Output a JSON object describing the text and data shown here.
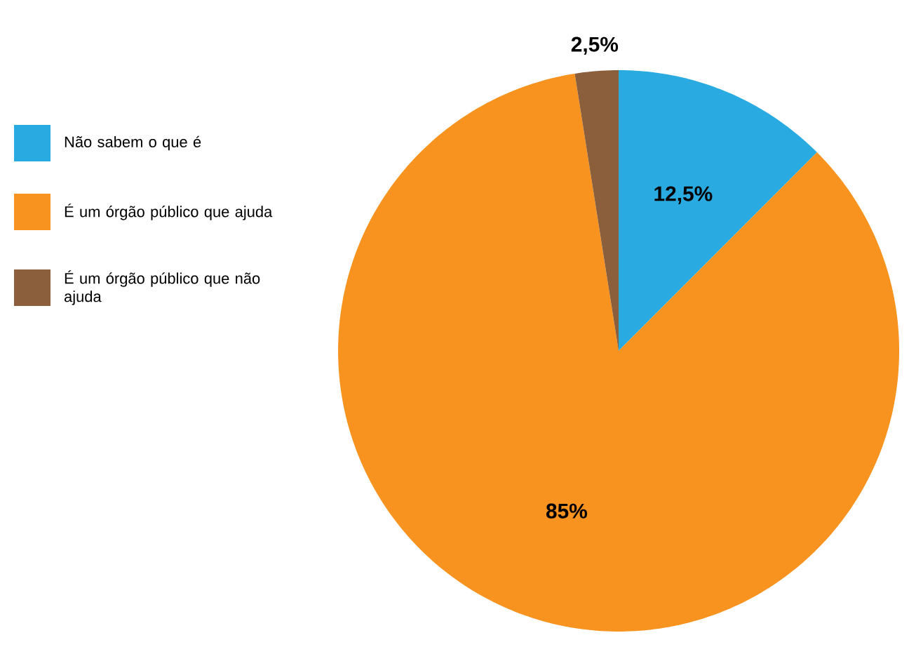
{
  "chart_data": {
    "type": "pie",
    "categories": [
      "Não sabem o que é",
      "É um órgão público que ajuda",
      "É um órgão público que não ajuda"
    ],
    "values": [
      12.5,
      85,
      2.5
    ],
    "colors": [
      "#29abe2",
      "#f7931e",
      "#8b5e3c"
    ],
    "value_labels": [
      "12,5%",
      "85%",
      "2,5%"
    ],
    "legend": "left"
  }
}
